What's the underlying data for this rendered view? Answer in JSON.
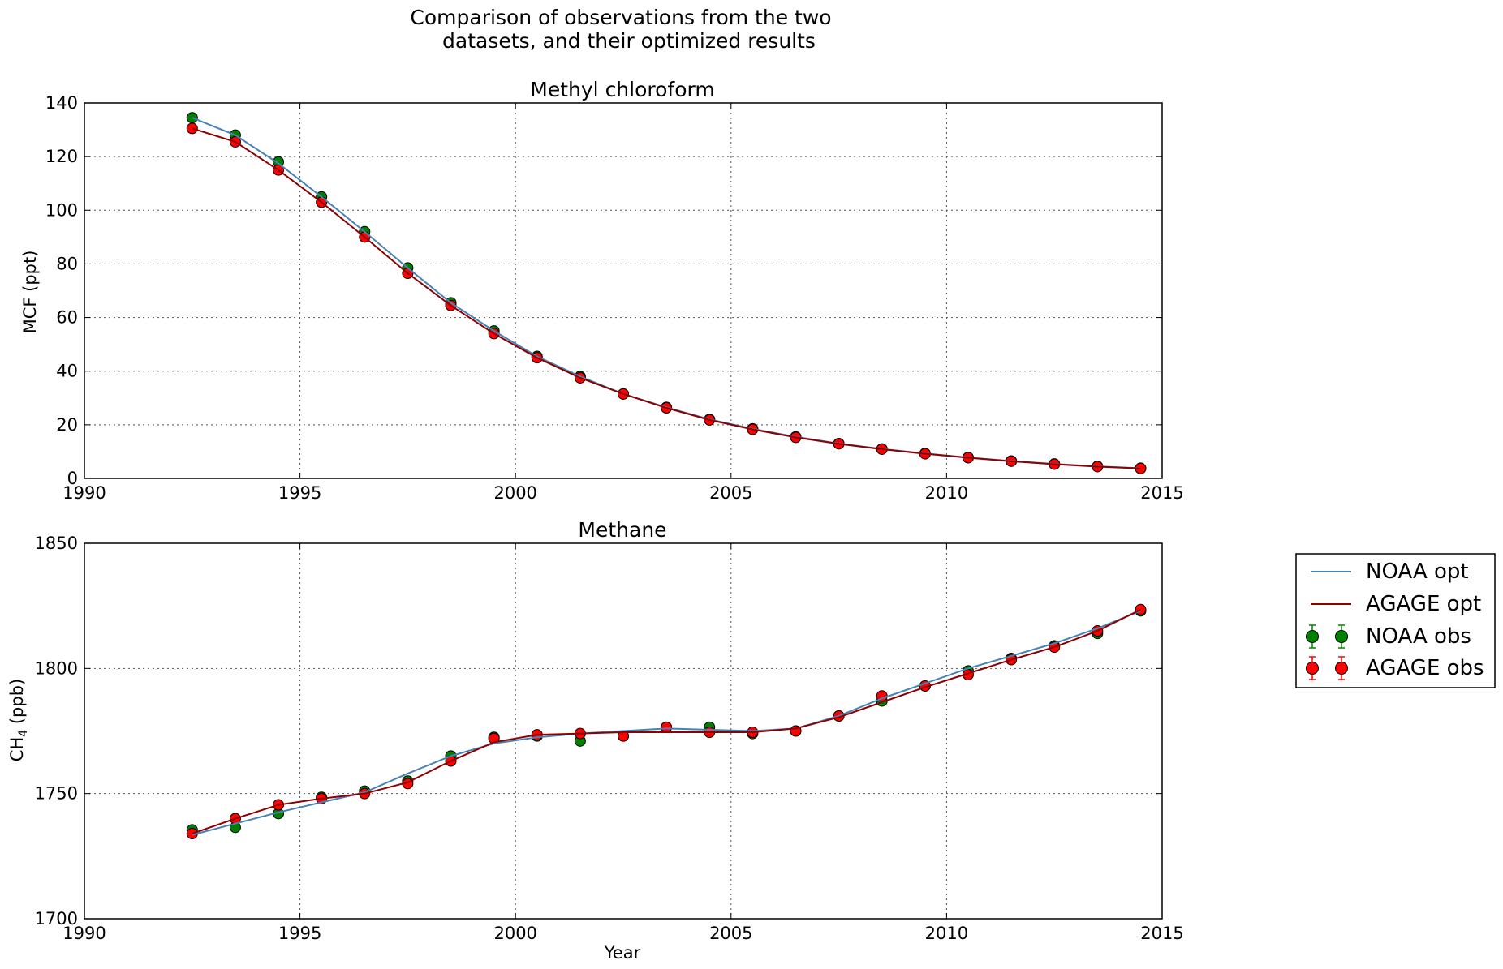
{
  "figure": {
    "title_line1": "Comparison of observations from the two",
    "title_line2": "datasets, and their optimized results"
  },
  "legend": {
    "noaa_opt": "NOAA opt",
    "agage_opt": "AGAGE opt",
    "noaa_obs": "NOAA obs",
    "agage_obs": "AGAGE obs"
  },
  "colors": {
    "noaa_opt": "#4682b4",
    "agage_opt": "#8b0000",
    "noaa_obs": "#008000",
    "agage_obs": "#ff0000"
  },
  "chart_data": [
    {
      "type": "line",
      "title": "Methyl chloroform",
      "xlabel": "",
      "ylabel": "MCF (ppt)",
      "xlim": [
        1990,
        2015
      ],
      "ylim": [
        0,
        140
      ],
      "xticks": [
        1990,
        1995,
        2000,
        2005,
        2010,
        2015
      ],
      "yticks": [
        0,
        20,
        40,
        60,
        80,
        100,
        120,
        140
      ],
      "grid": true,
      "x": [
        1992.5,
        1993.5,
        1994.5,
        1995.5,
        1996.5,
        1997.5,
        1998.5,
        1999.5,
        2000.5,
        2001.5,
        2002.5,
        2003.5,
        2004.5,
        2005.5,
        2006.5,
        2007.5,
        2008.5,
        2009.5,
        2010.5,
        2011.5,
        2012.5,
        2013.5,
        2014.5
      ],
      "series": [
        {
          "name": "NOAA opt",
          "kind": "line",
          "values": [
            134.5,
            128,
            117.5,
            105,
            92,
            78.5,
            65.5,
            55,
            45.5,
            38,
            31.5,
            26.5,
            22,
            18.5,
            15.5,
            13,
            11,
            9.3,
            7.8,
            6.5,
            5.4,
            4.5,
            3.8
          ]
        },
        {
          "name": "AGAGE opt",
          "kind": "line",
          "values": [
            130.5,
            125.5,
            115,
            103,
            90,
            76.5,
            64.5,
            54,
            45,
            37.5,
            31.5,
            26.3,
            21.8,
            18.3,
            15.3,
            12.9,
            10.9,
            9.2,
            7.7,
            6.4,
            5.3,
            4.4,
            3.7
          ]
        },
        {
          "name": "NOAA obs",
          "kind": "points",
          "values": [
            134.5,
            128,
            118,
            105,
            92,
            78.5,
            65.5,
            55,
            45.5,
            38,
            31.5,
            26.5,
            22,
            18.5,
            15.5,
            13,
            11,
            9.3,
            7.8,
            6.5,
            5.4,
            4.5,
            3.8
          ]
        },
        {
          "name": "AGAGE obs",
          "kind": "points",
          "values": [
            130.5,
            125.5,
            115,
            103,
            90,
            76.5,
            64.5,
            54,
            45,
            37.5,
            31.5,
            26.3,
            21.8,
            18.3,
            15.3,
            12.9,
            10.9,
            9.2,
            7.7,
            6.4,
            5.3,
            4.4,
            3.7
          ]
        }
      ]
    },
    {
      "type": "line",
      "title": "Methane",
      "xlabel": "Year",
      "ylabel": "CH",
      "ylabel_subscript": "4",
      "ylabel_suffix": " (ppb)",
      "xlim": [
        1990,
        2015
      ],
      "ylim": [
        1700,
        1850
      ],
      "xticks": [
        1990,
        1995,
        2000,
        2005,
        2010,
        2015
      ],
      "yticks": [
        1700,
        1750,
        1800,
        1850
      ],
      "grid": true,
      "legend_position": "outside right",
      "x": [
        1992.5,
        1993.5,
        1994.5,
        1995.5,
        1996.5,
        1997.5,
        1998.5,
        1999.5,
        2000.5,
        2001.5,
        2002.5,
        2003.5,
        2004.5,
        2005.5,
        2006.5,
        2007.5,
        2008.5,
        2009.5,
        2010.5,
        2011.5,
        2012.5,
        2013.5,
        2014.5
      ],
      "series": [
        {
          "name": "NOAA opt",
          "kind": "line",
          "values": [
            1733.5,
            1738,
            1742.5,
            1746.5,
            1750.5,
            1758,
            1765,
            1770,
            1772.5,
            1774,
            1775,
            1776,
            1775.5,
            1775,
            1776,
            1781,
            1788,
            1794,
            1800,
            1805,
            1810,
            1816,
            1823
          ]
        },
        {
          "name": "AGAGE opt",
          "kind": "line",
          "values": [
            1734,
            1740,
            1745.5,
            1748,
            1750,
            1754.5,
            1763,
            1770.5,
            1773.5,
            1774,
            1774.5,
            1774.5,
            1774.5,
            1774.5,
            1776,
            1780.5,
            1786.5,
            1792.5,
            1798,
            1803.5,
            1808.5,
            1815,
            1823.5
          ]
        },
        {
          "name": "NOAA obs",
          "kind": "points",
          "values": [
            1735.5,
            1736.5,
            1742,
            1748.5,
            1751,
            1755,
            1765,
            1772.5,
            1773,
            1771,
            1773,
            1776.5,
            1776.5,
            1774,
            1775,
            1781,
            1787,
            1793,
            1799,
            1804,
            1809,
            1814,
            1823
          ]
        },
        {
          "name": "AGAGE obs",
          "kind": "points",
          "values": [
            1734,
            1740,
            1745.5,
            1748,
            1750,
            1754,
            1763,
            1772,
            1773.5,
            1774,
            1773,
            1776.5,
            1774.5,
            1774.5,
            1775,
            1781,
            1789,
            1793,
            1797.5,
            1803.5,
            1808.5,
            1815,
            1823.5
          ]
        }
      ]
    }
  ]
}
